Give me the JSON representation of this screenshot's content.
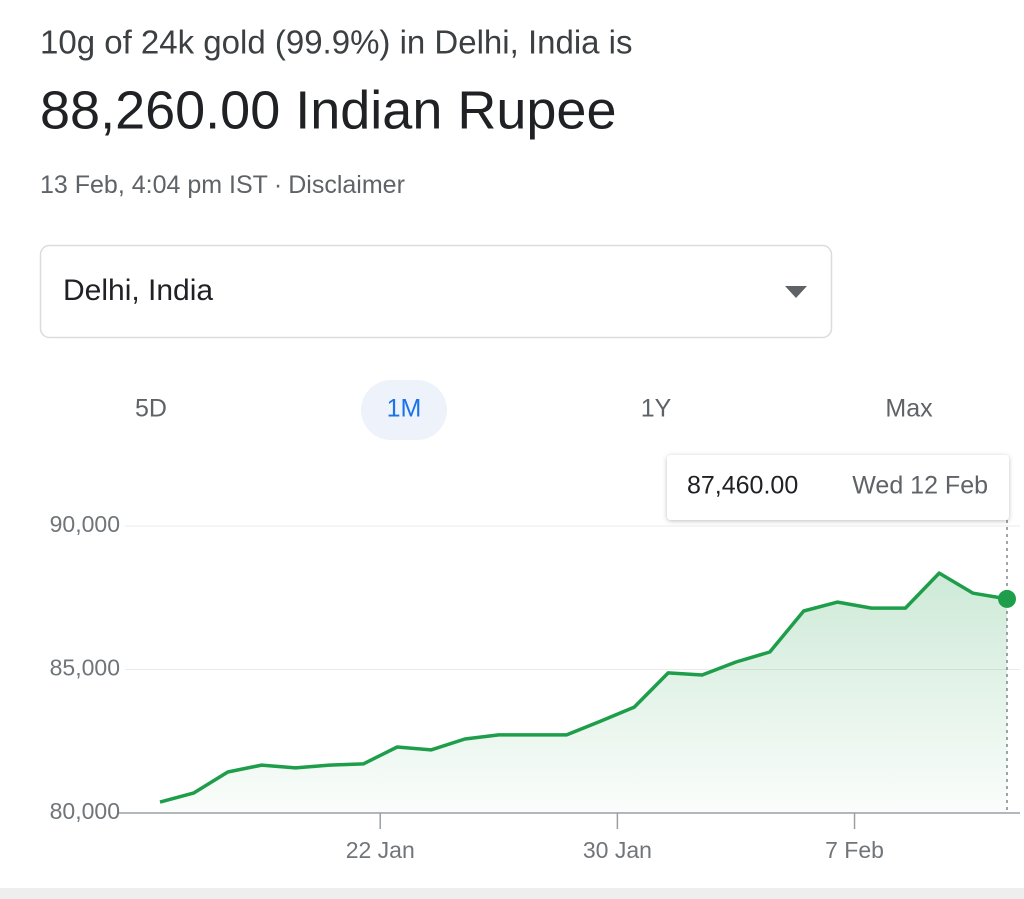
{
  "header": {
    "title": "10g of 24k gold (99.9%) in Delhi, India is",
    "price": "88,260.00 Indian Rupee",
    "timestamp": "13 Feb, 4:04 pm IST",
    "separator": "·",
    "disclaimer": "Disclaimer"
  },
  "location_select": {
    "value": "Delhi, India"
  },
  "range_tabs": {
    "options": [
      "5D",
      "1M",
      "1Y",
      "Max"
    ],
    "selected_index": 1
  },
  "chart_data": {
    "type": "line",
    "categories": [
      null,
      null,
      null,
      null,
      null,
      null,
      "22 Jan",
      null,
      null,
      null,
      null,
      null,
      null,
      "30 Jan",
      null,
      null,
      null,
      null,
      null,
      null,
      "7 Feb",
      null,
      null,
      null,
      null,
      null
    ],
    "values": [
      80380,
      80700,
      81430,
      81670,
      81570,
      81670,
      81710,
      82300,
      82200,
      82580,
      82720,
      82720,
      82720,
      83200,
      83690,
      84880,
      84810,
      85260,
      85610,
      87040,
      87350,
      87140,
      87140,
      88360,
      87660,
      87460
    ],
    "color": "#1e9e4a",
    "ylim": [
      80000,
      90000
    ],
    "yticks": [
      {
        "value": 80000,
        "label": "80,000"
      },
      {
        "value": 85000,
        "label": "85,000"
      },
      {
        "value": 90000,
        "label": "90,000"
      }
    ],
    "grid": true,
    "tooltip": {
      "value": 87460,
      "label": "87,460.00",
      "date": "Wed 12 Feb"
    }
  }
}
